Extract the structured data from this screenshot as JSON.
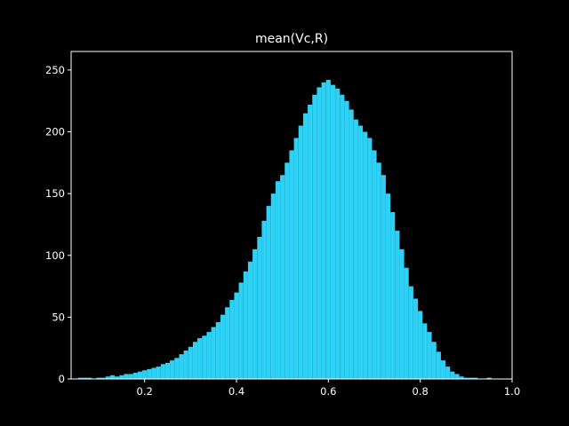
{
  "chart_data": {
    "type": "bar",
    "title": "mean(Vc,R)",
    "xlabel": "",
    "ylabel": "",
    "xlim": [
      0.04,
      1.0
    ],
    "ylim": [
      0,
      265
    ],
    "bar_color": "#2ed1f6",
    "background": "#000000",
    "foreground": "#ffffff",
    "grid": false,
    "x_ticks": [
      0.2,
      0.4,
      0.6,
      0.8,
      1.0
    ],
    "x_tick_labels": [
      "0.2",
      "0.4",
      "0.6",
      "0.8",
      "1.0"
    ],
    "y_ticks": [
      0,
      50,
      100,
      150,
      200,
      250
    ],
    "y_tick_labels": [
      "0",
      "50",
      "100",
      "150",
      "200",
      "250"
    ],
    "bin_width": 0.004,
    "bins": [
      [
        0.06,
        1
      ],
      [
        0.07,
        1
      ],
      [
        0.08,
        1
      ],
      [
        0.09,
        0
      ],
      [
        0.1,
        1
      ],
      [
        0.11,
        1
      ],
      [
        0.12,
        2
      ],
      [
        0.13,
        3
      ],
      [
        0.14,
        2
      ],
      [
        0.15,
        3
      ],
      [
        0.16,
        4
      ],
      [
        0.17,
        4
      ],
      [
        0.18,
        5
      ],
      [
        0.19,
        6
      ],
      [
        0.2,
        7
      ],
      [
        0.21,
        8
      ],
      [
        0.22,
        9
      ],
      [
        0.23,
        10
      ],
      [
        0.24,
        12
      ],
      [
        0.25,
        13
      ],
      [
        0.26,
        15
      ],
      [
        0.27,
        17
      ],
      [
        0.28,
        20
      ],
      [
        0.29,
        23
      ],
      [
        0.3,
        26
      ],
      [
        0.31,
        30
      ],
      [
        0.32,
        33
      ],
      [
        0.33,
        35
      ],
      [
        0.34,
        38
      ],
      [
        0.35,
        42
      ],
      [
        0.36,
        46
      ],
      [
        0.37,
        52
      ],
      [
        0.38,
        58
      ],
      [
        0.39,
        64
      ],
      [
        0.4,
        70
      ],
      [
        0.41,
        78
      ],
      [
        0.42,
        87
      ],
      [
        0.43,
        95
      ],
      [
        0.44,
        105
      ],
      [
        0.45,
        115
      ],
      [
        0.46,
        128
      ],
      [
        0.47,
        140
      ],
      [
        0.48,
        150
      ],
      [
        0.49,
        160
      ],
      [
        0.5,
        165
      ],
      [
        0.51,
        175
      ],
      [
        0.52,
        185
      ],
      [
        0.53,
        195
      ],
      [
        0.54,
        205
      ],
      [
        0.55,
        215
      ],
      [
        0.56,
        222
      ],
      [
        0.57,
        230
      ],
      [
        0.58,
        236
      ],
      [
        0.59,
        240
      ],
      [
        0.6,
        242
      ],
      [
        0.61,
        238
      ],
      [
        0.62,
        235
      ],
      [
        0.63,
        230
      ],
      [
        0.64,
        225
      ],
      [
        0.65,
        218
      ],
      [
        0.66,
        210
      ],
      [
        0.67,
        205
      ],
      [
        0.68,
        200
      ],
      [
        0.69,
        195
      ],
      [
        0.7,
        185
      ],
      [
        0.71,
        175
      ],
      [
        0.72,
        165
      ],
      [
        0.73,
        150
      ],
      [
        0.74,
        135
      ],
      [
        0.75,
        120
      ],
      [
        0.76,
        105
      ],
      [
        0.77,
        90
      ],
      [
        0.78,
        75
      ],
      [
        0.79,
        65
      ],
      [
        0.8,
        55
      ],
      [
        0.81,
        45
      ],
      [
        0.82,
        38
      ],
      [
        0.83,
        30
      ],
      [
        0.84,
        22
      ],
      [
        0.85,
        15
      ],
      [
        0.86,
        10
      ],
      [
        0.87,
        6
      ],
      [
        0.88,
        4
      ],
      [
        0.89,
        2
      ],
      [
        0.9,
        1
      ],
      [
        0.91,
        1
      ],
      [
        0.92,
        1
      ],
      [
        0.93,
        0
      ],
      [
        0.94,
        0
      ],
      [
        0.95,
        1
      ]
    ]
  }
}
